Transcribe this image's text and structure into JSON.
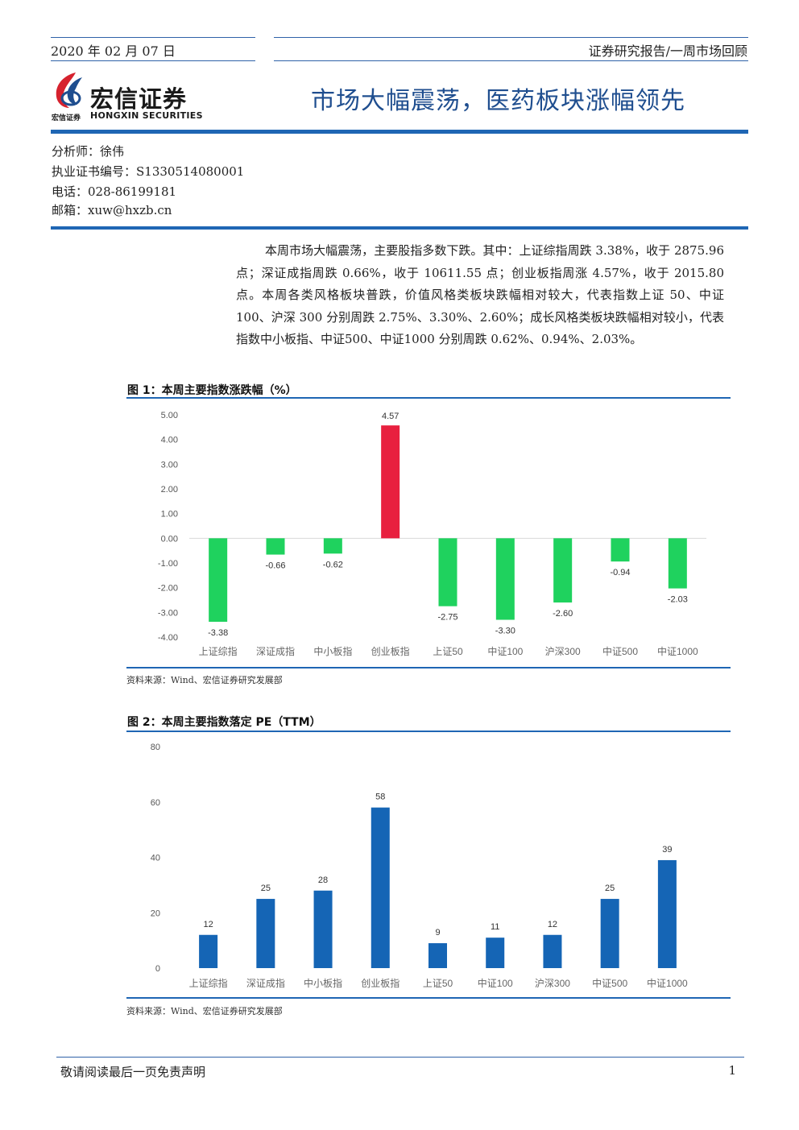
{
  "header": {
    "date": "2020 年 02 月 07 日",
    "category": "证券研究报告/一周市场回顾",
    "logo_cn": "宏信证券",
    "logo_small": "宏信证券",
    "logo_en": "HONGXIN SECURITIES",
    "title": "市场大幅震荡，医药板块涨幅领先"
  },
  "analyst": {
    "name": "分析师：徐伟",
    "cert": "执业证书编号：S1330514080001",
    "phone": "电话：028-86199181",
    "email": "邮箱：xuw@hxzb.cn"
  },
  "summary": "本周市场大幅震荡，主要股指多数下跌。其中：上证综指周跌 3.38%，收于 2875.96 点；深证成指周跌 0.66%，收于 10611.55 点；创业板指周涨 4.57%，收于 2015.80 点。本周各类风格板块普跌，价值风格类板块跌幅相对较大，代表指数上证 50、中证 100、沪深 300 分别周跌 2.75%、3.30%、2.60%；成长风格类板块跌幅相对较小，代表指数中小板指、中证500、中证1000 分别周跌 0.62%、0.94%、2.03%。",
  "figure1": {
    "title": "图 1：本周主要指数涨跌幅（%）",
    "source": "资料来源：Wind、宏信证券研究发展部"
  },
  "figure2": {
    "title": "图 2：本周主要指数落定 PE（TTM）",
    "source": "资料来源：Wind、宏信证券研究发展部"
  },
  "footer": {
    "disclaimer": "敬请阅读最后一页免责声明",
    "page": "1"
  },
  "chart_data": [
    {
      "type": "bar",
      "categories": [
        "上证综指",
        "深证成指",
        "中小板指",
        "创业板指",
        "上证50",
        "中证100",
        "沪深300",
        "中证500",
        "中证1000"
      ],
      "values": [
        -3.38,
        -0.66,
        -0.62,
        4.57,
        -2.75,
        -3.3,
        -2.6,
        -0.94,
        -2.03
      ],
      "value_labels": [
        "-3.38",
        "-0.66",
        "-0.62",
        "4.57",
        "-2.75",
        "-3.30",
        "-2.60",
        "-0.94",
        "-2.03"
      ],
      "yticks": [
        "5.00",
        "4.00",
        "3.00",
        "2.00",
        "1.00",
        "0.00",
        "-1.00",
        "-2.00",
        "-3.00",
        "-4.00"
      ],
      "ylim": [
        -4,
        5
      ],
      "colors": {
        "positive": "#e8203f",
        "negative": "#1fd25e"
      },
      "grid": false
    },
    {
      "type": "bar",
      "categories": [
        "上证综指",
        "深证成指",
        "中小板指",
        "创业板指",
        "上证50",
        "中证100",
        "沪深300",
        "中证500",
        "中证1000"
      ],
      "values": [
        12,
        25,
        28,
        58,
        9,
        11,
        12,
        25,
        39
      ],
      "value_labels": [
        "12",
        "25",
        "28",
        "58",
        "9",
        "11",
        "12",
        "25",
        "39"
      ],
      "yticks": [
        "80",
        "60",
        "40",
        "20",
        "0"
      ],
      "ylim": [
        0,
        80
      ],
      "colors": {
        "bar": "#1565b5"
      },
      "grid": false
    }
  ]
}
